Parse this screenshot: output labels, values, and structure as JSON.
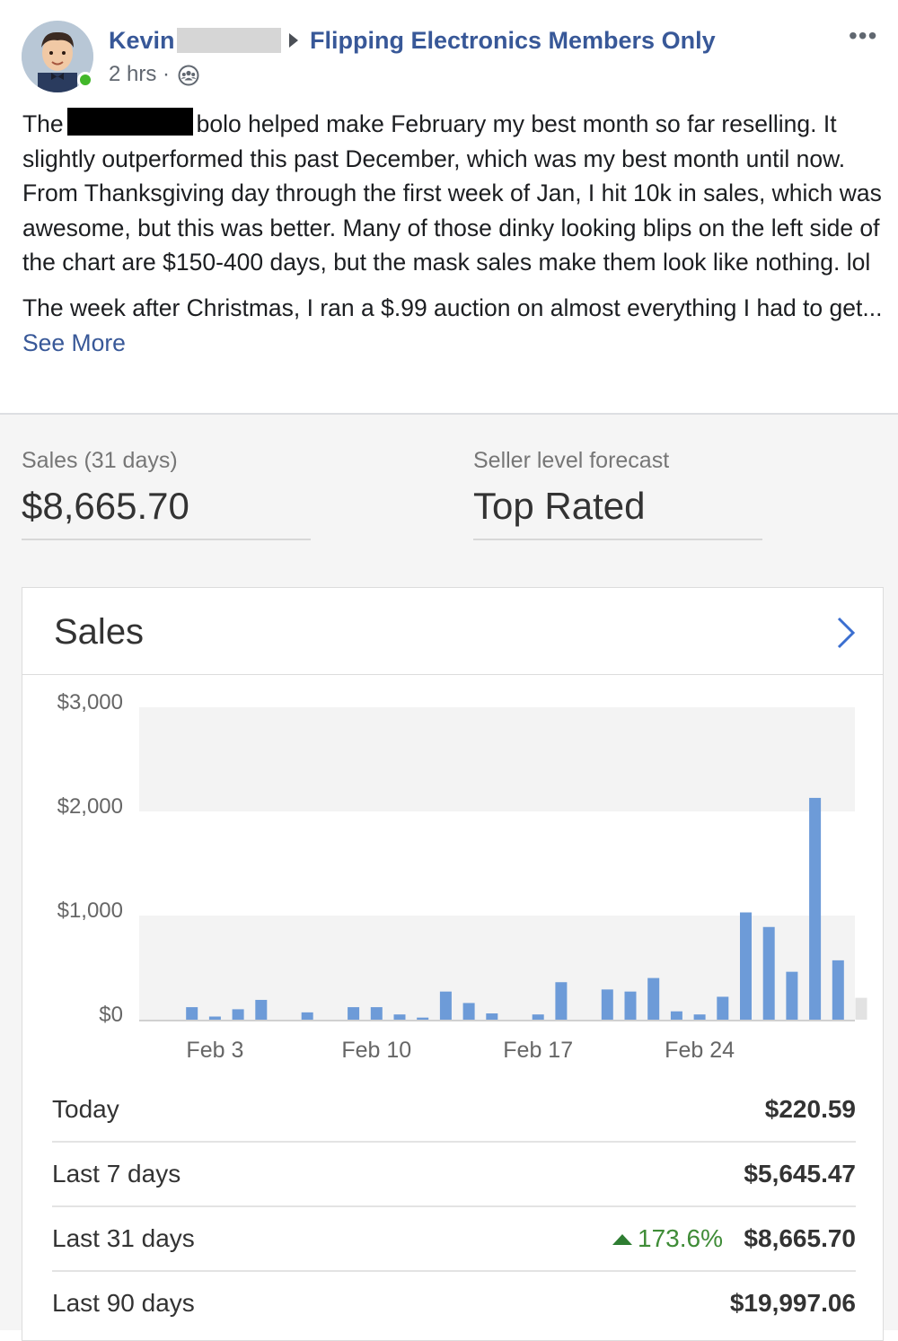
{
  "post": {
    "author": "Kevin",
    "group": "Flipping Electronics Members Only",
    "time": "2 hrs ·",
    "more": "•••",
    "p1_before": "The",
    "p1_after": "bolo helped make February my best month so far reselling. It slightly outperformed this past December, which was my best month until now. From Thanksgiving day through the first week of Jan, I hit 10k in sales, which was awesome, but this was better. Many of those dinky looking blips on the left side of the chart are $150-400 days, but the mask sales make them look like nothing. lol",
    "p2": "The week after Christmas, I ran a $.99 auction on almost everything I had to get...",
    "see_more": "See More",
    "link_color": "#385898"
  },
  "stats": {
    "sales_label": "Sales (31 days)",
    "sales_value": "$8,665.70",
    "forecast_label": "Seller level forecast",
    "forecast_value": "Top Rated"
  },
  "card": {
    "title": "Sales"
  },
  "chart_data": {
    "type": "bar",
    "y_ticks": [
      "$3,000",
      "$2,000",
      "$1,000",
      "$0"
    ],
    "ylim": [
      0,
      3000
    ],
    "x_tick_labels": [
      "Feb 3",
      "Feb 10",
      "Feb 17",
      "Feb 24"
    ],
    "x_tick_days": [
      3,
      10,
      17,
      24
    ],
    "grid": "alternating bands",
    "bar_color": "#6d9bd8",
    "partial_color": "#e2e2e2",
    "days": [
      1,
      2,
      3,
      4,
      5,
      6,
      7,
      8,
      9,
      10,
      11,
      12,
      13,
      14,
      15,
      16,
      17,
      18,
      19,
      20,
      21,
      22,
      23,
      24,
      25,
      26,
      27,
      28,
      29,
      30,
      31
    ],
    "values": [
      0,
      120,
      30,
      100,
      190,
      0,
      70,
      0,
      120,
      120,
      50,
      20,
      270,
      160,
      60,
      0,
      50,
      360,
      0,
      290,
      270,
      400,
      80,
      50,
      220,
      1030,
      890,
      460,
      2130,
      570,
      210
    ],
    "partial_day": 31
  },
  "summary": [
    {
      "label": "Today",
      "value": "$220.59",
      "change": ""
    },
    {
      "label": "Last 7 days",
      "value": "$5,645.47",
      "change": ""
    },
    {
      "label": "Last 31 days",
      "value": "$8,665.70",
      "change": "173.6%"
    },
    {
      "label": "Last 90 days",
      "value": "$19,997.06",
      "change": ""
    }
  ]
}
